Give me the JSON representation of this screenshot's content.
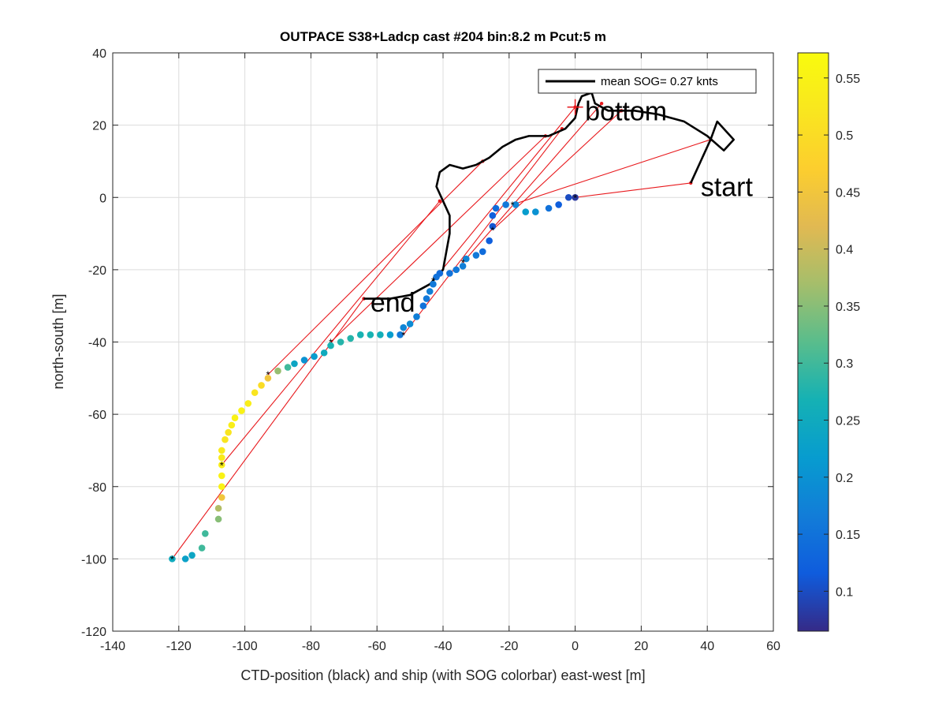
{
  "chart_data": {
    "type": "scatter",
    "title": "OUTPACE S38+Ladcp cast #204 bin:8.2 m  Pcut:5 m",
    "xlabel": "CTD-position (black) and ship (with SOG colorbar) east-west [m]",
    "ylabel": "north-south [m]",
    "xlim": [
      -140,
      60
    ],
    "ylim": [
      -120,
      40
    ],
    "xticks": [
      "-140",
      "-120",
      "-100",
      "-80",
      "-60",
      "-40",
      "-20",
      "0",
      "20",
      "40",
      "60"
    ],
    "yticks": [
      "-120",
      "-100",
      "-80",
      "-60",
      "-40",
      "-20",
      "0",
      "20",
      "40"
    ],
    "grid": true,
    "legend": {
      "location": "top-right",
      "entry": "mean SOG=  0.27 knts"
    },
    "colorbar": {
      "label_ticks": [
        "0.1",
        "0.15",
        "0.2",
        "0.25",
        "0.3",
        "0.35",
        "0.4",
        "0.45",
        "0.5",
        "0.55"
      ],
      "tick_values": [
        0.1,
        0.15,
        0.2,
        0.25,
        0.3,
        0.35,
        0.4,
        0.45,
        0.5,
        0.55
      ],
      "range": [
        0.065,
        0.572
      ],
      "colormap": "parula"
    },
    "annotations": [
      {
        "text": "start",
        "x": 38,
        "y": 3
      },
      {
        "text": "bottom",
        "x": 3,
        "y": 24
      },
      {
        "text": "end",
        "x": -62,
        "y": -29
      }
    ],
    "ctd_track": [
      [
        35,
        4
      ],
      [
        41,
        16
      ],
      [
        43,
        21
      ],
      [
        48,
        16
      ],
      [
        45,
        13
      ],
      [
        40,
        17
      ],
      [
        33,
        21
      ],
      [
        25,
        23
      ],
      [
        18,
        24
      ],
      [
        10,
        24
      ],
      [
        6,
        26
      ],
      [
        5,
        29
      ],
      [
        2,
        28
      ],
      [
        1,
        26
      ],
      [
        0,
        22
      ],
      [
        -3,
        19
      ],
      [
        -8,
        17
      ],
      [
        -14,
        17
      ],
      [
        -18,
        16
      ],
      [
        -22,
        14
      ],
      [
        -26,
        11
      ],
      [
        -30,
        9
      ],
      [
        -34,
        8
      ],
      [
        -38,
        9
      ],
      [
        -41,
        7
      ],
      [
        -42,
        3
      ],
      [
        -40,
        -1
      ],
      [
        -38,
        -5
      ],
      [
        -38,
        -10
      ],
      [
        -39,
        -15
      ],
      [
        -40,
        -20
      ],
      [
        -44,
        -24
      ],
      [
        -50,
        -27
      ],
      [
        -56,
        -28
      ],
      [
        -64,
        -28
      ]
    ],
    "ship_track": [
      [
        0,
        0
      ],
      [
        -2,
        0
      ],
      [
        -5,
        -2
      ],
      [
        -8,
        -3
      ],
      [
        -12,
        -4
      ],
      [
        -15,
        -4
      ],
      [
        -18,
        -2
      ],
      [
        -21,
        -2
      ],
      [
        -24,
        -3
      ],
      [
        -25,
        -5
      ],
      [
        -25,
        -8
      ],
      [
        -26,
        -12
      ],
      [
        -28,
        -15
      ],
      [
        -30,
        -16
      ],
      [
        -33,
        -17
      ],
      [
        -34,
        -19
      ],
      [
        -36,
        -20
      ],
      [
        -38,
        -21
      ],
      [
        -41,
        -21
      ],
      [
        -42,
        -22
      ],
      [
        -43,
        -24
      ],
      [
        -44,
        -26
      ],
      [
        -45,
        -28
      ],
      [
        -46,
        -30
      ],
      [
        -48,
        -33
      ],
      [
        -50,
        -35
      ],
      [
        -52,
        -36
      ],
      [
        -53,
        -38
      ],
      [
        -56,
        -38
      ],
      [
        -59,
        -38
      ],
      [
        -62,
        -38
      ],
      [
        -65,
        -38
      ],
      [
        -68,
        -39
      ],
      [
        -71,
        -40
      ],
      [
        -74,
        -41
      ],
      [
        -76,
        -43
      ],
      [
        -79,
        -44
      ],
      [
        -82,
        -45
      ],
      [
        -85,
        -46
      ],
      [
        -87,
        -47
      ],
      [
        -90,
        -48
      ],
      [
        -93,
        -50
      ],
      [
        -95,
        -52
      ],
      [
        -97,
        -54
      ],
      [
        -99,
        -57
      ],
      [
        -101,
        -59
      ],
      [
        -103,
        -61
      ],
      [
        -104,
        -63
      ],
      [
        -105,
        -65
      ],
      [
        -106,
        -67
      ],
      [
        -107,
        -70
      ],
      [
        -107,
        -72
      ],
      [
        -107,
        -74
      ],
      [
        -107,
        -77
      ],
      [
        -107,
        -80
      ],
      [
        -107,
        -83
      ],
      [
        -108,
        -86
      ],
      [
        -108,
        -89
      ],
      [
        -112,
        -93
      ],
      [
        -113,
        -97
      ],
      [
        -116,
        -99
      ],
      [
        -118,
        -100
      ],
      [
        -122,
        -100
      ]
    ],
    "ship_sog": [
      0.08,
      0.1,
      0.12,
      0.15,
      0.2,
      0.22,
      0.18,
      0.16,
      0.14,
      0.12,
      0.11,
      0.12,
      0.14,
      0.16,
      0.18,
      0.17,
      0.16,
      0.15,
      0.14,
      0.15,
      0.16,
      0.17,
      0.16,
      0.15,
      0.17,
      0.19,
      0.18,
      0.16,
      0.22,
      0.26,
      0.27,
      0.27,
      0.28,
      0.28,
      0.27,
      0.25,
      0.22,
      0.2,
      0.24,
      0.3,
      0.36,
      0.45,
      0.5,
      0.52,
      0.54,
      0.55,
      0.55,
      0.54,
      0.52,
      0.52,
      0.53,
      0.53,
      0.54,
      0.55,
      0.55,
      0.45,
      0.38,
      0.35,
      0.3,
      0.3,
      0.24,
      0.23,
      0.25
    ],
    "ship_fix_markers": [
      [
        0,
        0
      ],
      [
        -19,
        -2
      ],
      [
        -25,
        -9
      ],
      [
        -34,
        -18
      ],
      [
        -43,
        -23
      ],
      [
        -52,
        -38
      ],
      [
        -74,
        -40
      ],
      [
        -93,
        -49
      ],
      [
        -107,
        -74
      ],
      [
        -122,
        -100
      ]
    ],
    "link_lines": [
      [
        [
          35,
          4
        ],
        [
          0,
          0
        ]
      ],
      [
        [
          41,
          16
        ],
        [
          -19,
          -2
        ]
      ],
      [
        [
          14,
          24
        ],
        [
          -25,
          -9
        ]
      ],
      [
        [
          8,
          26
        ],
        [
          -34,
          -18
        ]
      ],
      [
        [
          0,
          25
        ],
        [
          -43,
          -23
        ]
      ],
      [
        [
          -4,
          19
        ],
        [
          -52,
          -38
        ]
      ],
      [
        [
          -9,
          17
        ],
        [
          -74,
          -40
        ]
      ],
      [
        [
          -28,
          10
        ],
        [
          -93,
          -49
        ]
      ],
      [
        [
          -41,
          -1
        ],
        [
          -107,
          -74
        ]
      ],
      [
        [
          -64,
          -28
        ],
        [
          -122,
          -100
        ]
      ]
    ],
    "bottom_cross": [
      0,
      25
    ]
  }
}
